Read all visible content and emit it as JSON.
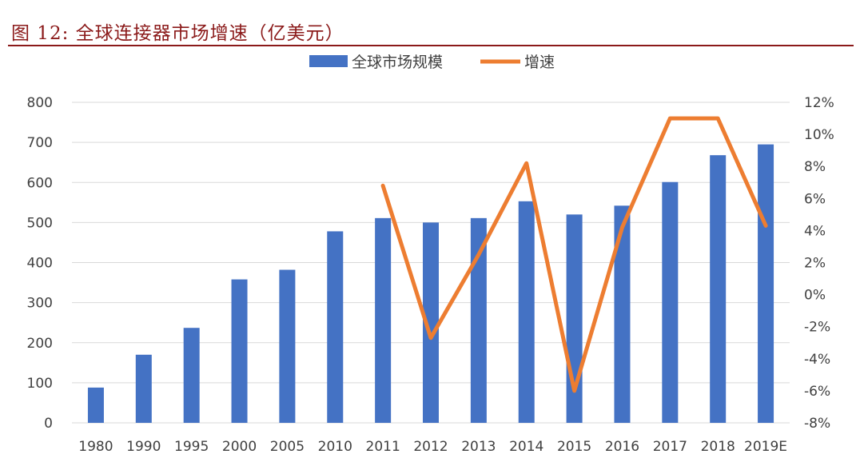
{
  "header": {
    "title": "图 12: 全球连接器市场增速（亿美元）"
  },
  "chart_data": {
    "type": "bar",
    "categories": [
      "1980",
      "1990",
      "1995",
      "2000",
      "2005",
      "2010",
      "2011",
      "2012",
      "2013",
      "2014",
      "2015",
      "2016",
      "2017",
      "2018",
      "2019E"
    ],
    "series": [
      {
        "name": "全球市场规模",
        "type": "bar",
        "axis": "left",
        "color": "#4472C4",
        "values": [
          88,
          170,
          237,
          358,
          382,
          478,
          511,
          500,
          511,
          553,
          520,
          542,
          601,
          668,
          695
        ]
      },
      {
        "name": "增速",
        "type": "line",
        "axis": "right",
        "color": "#ED7D31",
        "values": [
          null,
          null,
          null,
          null,
          null,
          null,
          6.8,
          -2.7,
          2.5,
          8.2,
          -6.0,
          4.2,
          11.0,
          11.0,
          4.3
        ]
      }
    ],
    "y_left": {
      "min": 0,
      "max": 800,
      "step": 100,
      "ticks": [
        "0",
        "100",
        "200",
        "300",
        "400",
        "500",
        "600",
        "700",
        "800"
      ]
    },
    "y_right": {
      "min": -8,
      "max": 12,
      "step": 2,
      "ticks": [
        "-8%",
        "-6%",
        "-4%",
        "-2%",
        "0%",
        "2%",
        "4%",
        "6%",
        "8%",
        "10%",
        "12%"
      ]
    },
    "grid": true,
    "legend": {
      "position": "top-center"
    }
  }
}
